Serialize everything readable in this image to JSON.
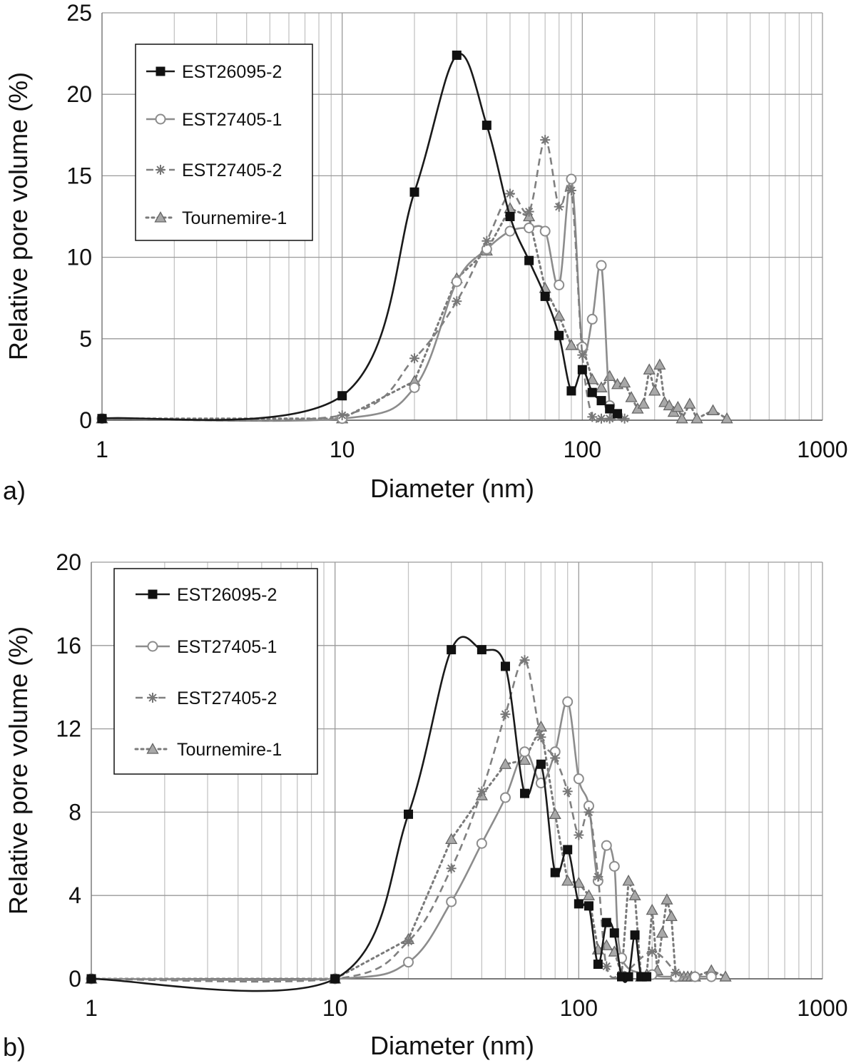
{
  "chart_data": [
    {
      "type": "line",
      "panel_label": "a)",
      "xlabel": "Diameter (nm)",
      "ylabel": "Relative pore volume (%)",
      "xscale": "log",
      "xlim": [
        1,
        1000
      ],
      "ylim": [
        0,
        25
      ],
      "xticks": [
        "1",
        "10",
        "100",
        "1000"
      ],
      "yticks": [
        "0",
        "5",
        "10",
        "15",
        "20",
        "25"
      ],
      "grid": true,
      "legend_position": "top-left",
      "series": [
        {
          "name": "EST26095-2",
          "color": "#1a1a1a",
          "dash": "solid",
          "marker": "square",
          "smooth": true,
          "x": [
            1,
            10,
            20,
            30,
            40,
            50,
            60,
            70,
            80,
            90,
            100,
            110,
            120,
            130,
            140
          ],
          "y": [
            0.1,
            1.5,
            14.0,
            22.4,
            18.1,
            12.5,
            9.8,
            7.6,
            5.2,
            1.8,
            3.1,
            1.7,
            1.2,
            0.7,
            0.4
          ]
        },
        {
          "name": "EST27405-1",
          "color": "#8c8c8c",
          "dash": "solid",
          "marker": "circle",
          "smooth": true,
          "x": [
            1,
            10,
            20,
            30,
            40,
            50,
            60,
            70,
            80,
            90,
            100,
            110,
            120,
            130,
            140
          ],
          "y": [
            0.1,
            0.1,
            2.0,
            8.5,
            10.5,
            11.6,
            11.8,
            11.6,
            8.3,
            14.8,
            4.5,
            6.2,
            9.5,
            0.9,
            0.3
          ]
        },
        {
          "name": "EST27405-2",
          "color": "#808080",
          "dash": "10,6",
          "marker": "star",
          "smooth": true,
          "x": [
            1,
            10,
            20,
            30,
            40,
            50,
            60,
            70,
            80,
            90,
            100,
            110,
            120,
            130,
            150
          ],
          "y": [
            0.1,
            0.3,
            3.8,
            7.3,
            11.0,
            13.9,
            12.8,
            17.2,
            13.1,
            14.1,
            4.0,
            0.2,
            0.1,
            0.1,
            0.1
          ]
        },
        {
          "name": "Tournemire-1",
          "color": "#7a7a7a",
          "dash": "3,5",
          "marker": "triangle",
          "smooth": false,
          "x": [
            1,
            10,
            20,
            30,
            40,
            50,
            60,
            70,
            80,
            90,
            100,
            110,
            120,
            130,
            140,
            150,
            160,
            170,
            180,
            190,
            200,
            210,
            220,
            230,
            240,
            250,
            260,
            280,
            300,
            350,
            400
          ],
          "y": [
            0.1,
            0.1,
            2.4,
            8.7,
            10.4,
            13.0,
            12.5,
            8.1,
            6.4,
            4.6,
            4.6,
            2.5,
            2.0,
            2.7,
            2.2,
            2.3,
            1.4,
            0.7,
            1.0,
            3.1,
            1.8,
            3.4,
            1.1,
            0.9,
            0.5,
            0.8,
            0.1,
            1.0,
            0.1,
            0.6,
            0.1
          ]
        }
      ]
    },
    {
      "type": "line",
      "panel_label": "b)",
      "xlabel": "Diameter (nm)",
      "ylabel": "Relative pore volume (%)",
      "xscale": "log",
      "xlim": [
        1,
        1000
      ],
      "ylim": [
        0,
        20
      ],
      "xticks": [
        "1",
        "10",
        "100",
        "1000"
      ],
      "yticks": [
        "0",
        "4",
        "8",
        "12",
        "16",
        "20"
      ],
      "grid": true,
      "legend_position": "top-left",
      "series": [
        {
          "name": "EST26095-2",
          "color": "#1a1a1a",
          "dash": "solid",
          "marker": "square",
          "smooth": true,
          "x": [
            1,
            10,
            20,
            30,
            40,
            50,
            60,
            70,
            80,
            90,
            100,
            110,
            120,
            130,
            140,
            150,
            160,
            170,
            180,
            190
          ],
          "y": [
            0,
            0,
            7.9,
            15.8,
            15.8,
            15.0,
            8.9,
            10.3,
            5.1,
            6.2,
            3.6,
            3.5,
            0.7,
            2.7,
            2.2,
            0.1,
            0.1,
            2.1,
            0.1,
            0.1
          ]
        },
        {
          "name": "EST27405-1",
          "color": "#8c8c8c",
          "dash": "solid",
          "marker": "circle",
          "smooth": true,
          "x": [
            1,
            10,
            20,
            30,
            40,
            50,
            60,
            70,
            80,
            90,
            100,
            110,
            120,
            130,
            140,
            150,
            200,
            250,
            300,
            350
          ],
          "y": [
            0,
            0,
            0.8,
            3.7,
            6.5,
            8.7,
            10.9,
            9.4,
            10.9,
            13.3,
            9.6,
            8.3,
            4.7,
            6.4,
            5.4,
            1.0,
            0.2,
            0.1,
            0.1,
            0.1
          ]
        },
        {
          "name": "EST27405-2",
          "color": "#808080",
          "dash": "10,6",
          "marker": "star",
          "smooth": true,
          "x": [
            1,
            10,
            20,
            30,
            40,
            50,
            60,
            70,
            80,
            90,
            100,
            110,
            120,
            130,
            150,
            200,
            250
          ],
          "y": [
            0,
            0,
            1.8,
            5.3,
            9.0,
            12.7,
            15.3,
            11.6,
            10.6,
            9.0,
            6.9,
            8.0,
            4.9,
            0.6,
            0.2,
            1.3,
            0.3
          ]
        },
        {
          "name": "Tournemire-1",
          "color": "#7a7a7a",
          "dash": "3,5",
          "marker": "triangle",
          "smooth": false,
          "x": [
            1,
            10,
            20,
            30,
            40,
            50,
            60,
            70,
            80,
            90,
            100,
            110,
            120,
            130,
            140,
            150,
            160,
            170,
            180,
            190,
            200,
            210,
            220,
            230,
            240,
            250,
            260,
            270,
            280,
            290,
            300,
            350,
            400
          ],
          "y": [
            0,
            0,
            1.9,
            6.7,
            8.8,
            10.3,
            10.5,
            12.1,
            7.9,
            4.7,
            4.6,
            4.0,
            1.4,
            1.6,
            1.3,
            0.2,
            4.7,
            4.0,
            0.1,
            0.2,
            3.3,
            0.4,
            2.2,
            3.8,
            3.0,
            0.1,
            0.1,
            0.1,
            0.1,
            0.1,
            0.1,
            0.4,
            0.1
          ]
        }
      ]
    }
  ]
}
